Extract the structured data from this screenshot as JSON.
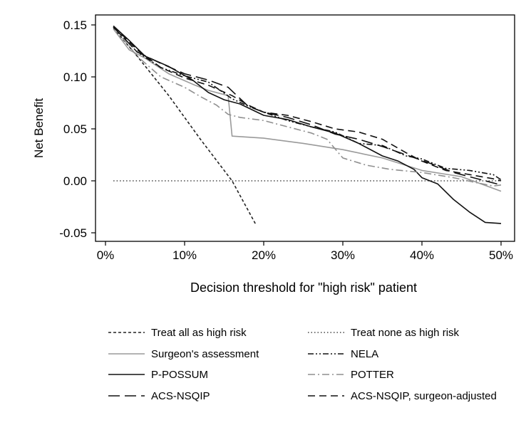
{
  "chart_data": {
    "type": "line",
    "title": "",
    "xlabel": "Decision threshold for \"high risk\" patient",
    "ylabel": "Net Benefit",
    "xlim": [
      0,
      0.5
    ],
    "ylim": [
      -0.05,
      0.15
    ],
    "x_ticks": [
      0,
      0.1,
      0.2,
      0.3,
      0.4,
      0.5
    ],
    "x_tick_labels": [
      "0%",
      "10%",
      "20%",
      "30%",
      "40%",
      "50%"
    ],
    "y_ticks": [
      -0.05,
      0,
      0.05,
      0.1,
      0.15
    ],
    "y_tick_labels": [
      "-0.05",
      "0.00",
      "0.05",
      "0.10",
      "0.15"
    ],
    "grid": false,
    "legend_position": "bottom",
    "series": [
      {
        "name": "Treat all as high risk",
        "color": "#222222",
        "dash": "short-dash",
        "points": [
          [
            0.01,
            0.147
          ],
          [
            0.04,
            0.12
          ],
          [
            0.08,
            0.082
          ],
          [
            0.12,
            0.04
          ],
          [
            0.16,
            0.0
          ],
          [
            0.19,
            -0.042
          ]
        ]
      },
      {
        "name": "Treat none as high risk",
        "color": "#222222",
        "dash": "dot",
        "points": [
          [
            0.01,
            0.0
          ],
          [
            0.5,
            0.0
          ]
        ]
      },
      {
        "name": "Surgeon's assessment",
        "color": "#9a9a9a",
        "dash": "solid",
        "points": [
          [
            0.01,
            0.146
          ],
          [
            0.03,
            0.126
          ],
          [
            0.05,
            0.118
          ],
          [
            0.08,
            0.103
          ],
          [
            0.11,
            0.093
          ],
          [
            0.13,
            0.087
          ],
          [
            0.155,
            0.082
          ],
          [
            0.16,
            0.043
          ],
          [
            0.2,
            0.041
          ],
          [
            0.25,
            0.036
          ],
          [
            0.3,
            0.03
          ],
          [
            0.35,
            0.022
          ],
          [
            0.4,
            0.01
          ],
          [
            0.45,
            0.004
          ],
          [
            0.5,
            -0.01
          ]
        ]
      },
      {
        "name": "NELA",
        "color": "#111111",
        "dash": "dash-dot-dot",
        "points": [
          [
            0.01,
            0.148
          ],
          [
            0.04,
            0.124
          ],
          [
            0.07,
            0.109
          ],
          [
            0.1,
            0.101
          ],
          [
            0.13,
            0.095
          ],
          [
            0.16,
            0.079
          ],
          [
            0.18,
            0.072
          ],
          [
            0.2,
            0.066
          ],
          [
            0.23,
            0.058
          ],
          [
            0.26,
            0.052
          ],
          [
            0.29,
            0.047
          ],
          [
            0.32,
            0.036
          ],
          [
            0.35,
            0.034
          ],
          [
            0.38,
            0.024
          ],
          [
            0.4,
            0.021
          ],
          [
            0.43,
            0.012
          ],
          [
            0.46,
            0.01
          ],
          [
            0.49,
            0.006
          ],
          [
            0.5,
            0.001
          ]
        ]
      },
      {
        "name": "P-POSSUM",
        "color": "#111111",
        "dash": "solid",
        "points": [
          [
            0.01,
            0.149
          ],
          [
            0.03,
            0.135
          ],
          [
            0.05,
            0.12
          ],
          [
            0.08,
            0.11
          ],
          [
            0.11,
            0.097
          ],
          [
            0.13,
            0.085
          ],
          [
            0.15,
            0.078
          ],
          [
            0.17,
            0.074
          ],
          [
            0.2,
            0.063
          ],
          [
            0.23,
            0.059
          ],
          [
            0.26,
            0.052
          ],
          [
            0.29,
            0.046
          ],
          [
            0.32,
            0.036
          ],
          [
            0.35,
            0.024
          ],
          [
            0.37,
            0.019
          ],
          [
            0.39,
            0.011
          ],
          [
            0.4,
            0.003
          ],
          [
            0.42,
            -0.003
          ],
          [
            0.44,
            -0.018
          ],
          [
            0.46,
            -0.03
          ],
          [
            0.48,
            -0.04
          ],
          [
            0.5,
            -0.041
          ]
        ]
      },
      {
        "name": "POTTER",
        "color": "#8f8f8f",
        "dash": "dash-dot",
        "points": [
          [
            0.01,
            0.148
          ],
          [
            0.04,
            0.12
          ],
          [
            0.07,
            0.1
          ],
          [
            0.1,
            0.09
          ],
          [
            0.12,
            0.081
          ],
          [
            0.14,
            0.073
          ],
          [
            0.155,
            0.064
          ],
          [
            0.17,
            0.061
          ],
          [
            0.2,
            0.058
          ],
          [
            0.23,
            0.052
          ],
          [
            0.26,
            0.046
          ],
          [
            0.28,
            0.04
          ],
          [
            0.3,
            0.022
          ],
          [
            0.33,
            0.015
          ],
          [
            0.36,
            0.011
          ],
          [
            0.4,
            0.008
          ],
          [
            0.44,
            0.003
          ],
          [
            0.47,
            -0.002
          ],
          [
            0.49,
            -0.005
          ],
          [
            0.5,
            -0.004
          ]
        ]
      },
      {
        "name": "ACS-NSQIP",
        "color": "#111111",
        "dash": "long-dash",
        "points": [
          [
            0.01,
            0.148
          ],
          [
            0.04,
            0.124
          ],
          [
            0.07,
            0.113
          ],
          [
            0.1,
            0.103
          ],
          [
            0.13,
            0.097
          ],
          [
            0.155,
            0.09
          ],
          [
            0.18,
            0.072
          ],
          [
            0.2,
            0.066
          ],
          [
            0.23,
            0.061
          ],
          [
            0.26,
            0.054
          ],
          [
            0.29,
            0.045
          ],
          [
            0.32,
            0.04
          ],
          [
            0.35,
            0.033
          ],
          [
            0.38,
            0.025
          ],
          [
            0.41,
            0.017
          ],
          [
            0.44,
            0.008
          ],
          [
            0.47,
            0.002
          ],
          [
            0.5,
            -0.004
          ]
        ]
      },
      {
        "name": "ACS-NSQIP, surgeon-adjusted",
        "color": "#111111",
        "dash": "dash",
        "points": [
          [
            0.01,
            0.149
          ],
          [
            0.04,
            0.126
          ],
          [
            0.07,
            0.109
          ],
          [
            0.1,
            0.099
          ],
          [
            0.13,
            0.092
          ],
          [
            0.16,
            0.082
          ],
          [
            0.18,
            0.073
          ],
          [
            0.2,
            0.066
          ],
          [
            0.23,
            0.063
          ],
          [
            0.26,
            0.057
          ],
          [
            0.29,
            0.05
          ],
          [
            0.32,
            0.047
          ],
          [
            0.35,
            0.04
          ],
          [
            0.38,
            0.027
          ],
          [
            0.4,
            0.019
          ],
          [
            0.43,
            0.01
          ],
          [
            0.46,
            0.006
          ],
          [
            0.49,
            0.002
          ],
          [
            0.5,
            0.0
          ]
        ]
      }
    ]
  }
}
